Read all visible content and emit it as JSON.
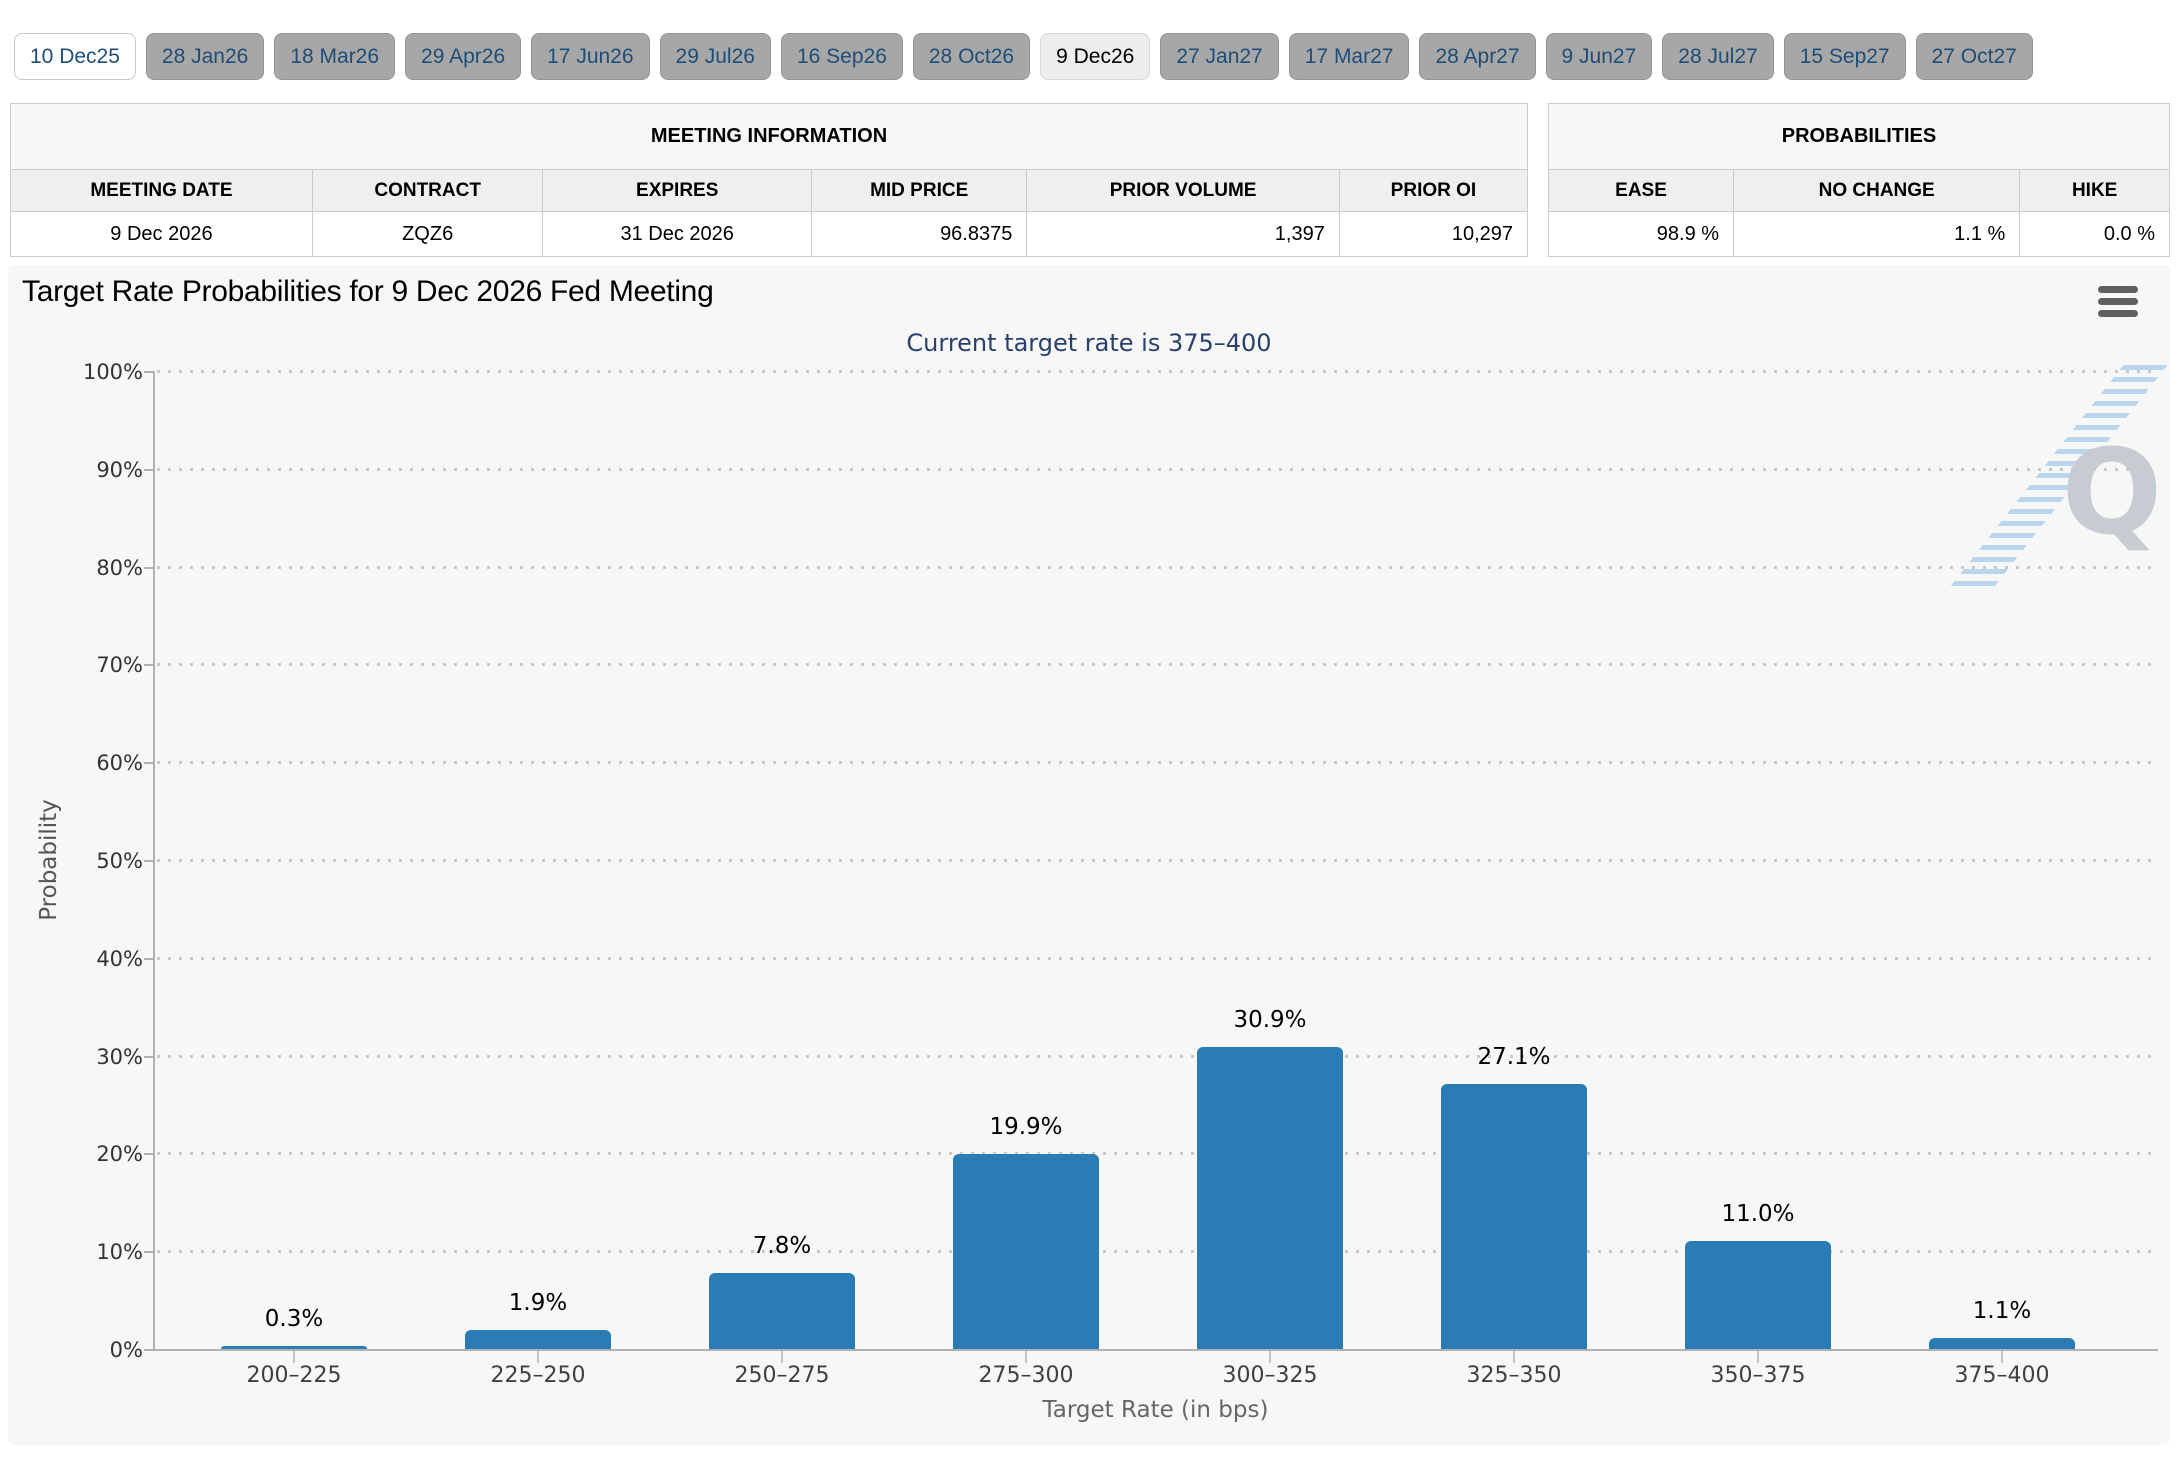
{
  "tabs": {
    "items": [
      {
        "label": "10 Dec25",
        "state": "front"
      },
      {
        "label": "28 Jan26",
        "state": "normal"
      },
      {
        "label": "18 Mar26",
        "state": "normal"
      },
      {
        "label": "29 Apr26",
        "state": "normal"
      },
      {
        "label": "17 Jun26",
        "state": "normal"
      },
      {
        "label": "29 Jul26",
        "state": "normal"
      },
      {
        "label": "16 Sep26",
        "state": "normal"
      },
      {
        "label": "28 Oct26",
        "state": "normal"
      },
      {
        "label": "9 Dec26",
        "state": "selected"
      },
      {
        "label": "27 Jan27",
        "state": "normal"
      },
      {
        "label": "17 Mar27",
        "state": "normal"
      },
      {
        "label": "28 Apr27",
        "state": "normal"
      },
      {
        "label": "9 Jun27",
        "state": "normal"
      },
      {
        "label": "28 Jul27",
        "state": "normal"
      },
      {
        "label": "15 Sep27",
        "state": "normal"
      },
      {
        "label": "27 Oct27",
        "state": "normal"
      }
    ]
  },
  "meeting_info": {
    "title": "MEETING INFORMATION",
    "columns": [
      "MEETING DATE",
      "CONTRACT",
      "EXPIRES",
      "MID PRICE",
      "PRIOR VOLUME",
      "PRIOR OI"
    ],
    "values": [
      "9 Dec 2026",
      "ZQZ6",
      "31 Dec 2026",
      "96.8375",
      "1,397",
      "10,297"
    ]
  },
  "probabilities": {
    "title": "PROBABILITIES",
    "columns": [
      "EASE",
      "NO CHANGE",
      "HIKE"
    ],
    "values": [
      "98.9 %",
      "1.1 %",
      "0.0 %"
    ]
  },
  "chart": {
    "menu_icon": "hamburger-menu",
    "watermark_letter": "Q"
  },
  "chart_data": {
    "type": "bar",
    "title": "Target Rate Probabilities for 9 Dec 2026 Fed Meeting",
    "subtitle": "Current target rate is 375–400",
    "categories": [
      "200–225",
      "225–250",
      "250–275",
      "275–300",
      "300–325",
      "325–350",
      "350–375",
      "375–400"
    ],
    "values": [
      0.3,
      1.9,
      7.8,
      19.9,
      30.9,
      27.1,
      11.0,
      1.1
    ],
    "value_labels": [
      "0.3%",
      "1.9%",
      "7.8%",
      "19.9%",
      "30.9%",
      "27.1%",
      "11.0%",
      "1.1%"
    ],
    "xlabel": "Target Rate (in bps)",
    "ylabel": "Probability",
    "ylim": [
      0,
      100
    ],
    "ytick_step": 10,
    "ytick_suffix": "%",
    "grid": "horizontal-dotted",
    "legend": "none"
  },
  "colors": {
    "bar_blue": "#2b7cb5",
    "tab_gray": "#a7a7a7",
    "tab_text_navy": "#1e4d78",
    "subtitle_navy": "#2a406b",
    "chart_bg": "#f7f7f7",
    "axis_gray": "#b2b2b2"
  }
}
